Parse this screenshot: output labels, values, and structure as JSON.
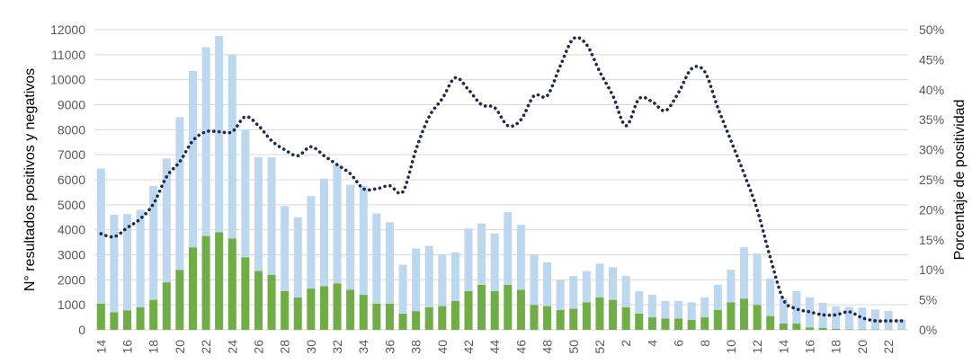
{
  "chart_data": {
    "type": "bar",
    "stacked": true,
    "x": [
      "14",
      "15",
      "16",
      "17",
      "18",
      "19",
      "20",
      "21",
      "22",
      "23",
      "24",
      "25",
      "26",
      "27",
      "28",
      "29",
      "30",
      "31",
      "32",
      "33",
      "34",
      "35",
      "36",
      "37",
      "38",
      "39",
      "40",
      "41",
      "42",
      "43",
      "44",
      "45",
      "46",
      "47",
      "48",
      "49",
      "50",
      "51",
      "52",
      "1",
      "2",
      "3",
      "4",
      "5",
      "6",
      "7",
      "8",
      "9",
      "10",
      "11",
      "12",
      "13",
      "14",
      "15",
      "16",
      "17",
      "18",
      "19",
      "20",
      "21",
      "22",
      "23"
    ],
    "x_tick_labels": [
      "14",
      "16",
      "18",
      "20",
      "22",
      "24",
      "26",
      "28",
      "30",
      "32",
      "34",
      "36",
      "38",
      "40",
      "42",
      "44",
      "46",
      "48",
      "50",
      "52",
      "2",
      "4",
      "6",
      "8",
      "10",
      "12",
      "14",
      "16",
      "18",
      "20",
      "22"
    ],
    "ylabel": "N° resultados positivos y negativos",
    "y2label": "Porcentaje de positividad",
    "ylim": [
      0,
      12000
    ],
    "y_ticks": [
      "0",
      "1000",
      "2000",
      "3000",
      "4000",
      "5000",
      "6000",
      "7000",
      "8000",
      "9000",
      "10000",
      "11000",
      "12000"
    ],
    "y2lim": [
      0,
      50
    ],
    "y2_ticks": [
      "0%",
      "5%",
      "10%",
      "15%",
      "20%",
      "25%",
      "30%",
      "35%",
      "40%",
      "45%",
      "50%"
    ],
    "grid": true,
    "series": [
      {
        "kind": "bar",
        "color": "#70ad47",
        "values": [
          1050,
          700,
          780,
          900,
          1200,
          1900,
          2400,
          3300,
          3750,
          3900,
          3650,
          2900,
          2350,
          2200,
          1550,
          1300,
          1650,
          1750,
          1850,
          1600,
          1400,
          1050,
          1050,
          650,
          750,
          900,
          950,
          1150,
          1550,
          1800,
          1550,
          1800,
          1600,
          1000,
          950,
          800,
          850,
          1100,
          1300,
          1200,
          900,
          650,
          500,
          450,
          450,
          400,
          500,
          800,
          1100,
          1250,
          1000,
          550,
          250,
          250,
          100,
          80,
          40,
          20,
          20,
          15,
          10,
          10
        ]
      },
      {
        "kind": "bar",
        "color": "#bdd7ee",
        "values": [
          5400,
          3900,
          3850,
          3900,
          4550,
          4950,
          6100,
          7050,
          7550,
          7850,
          7350,
          5100,
          4550,
          4700,
          3400,
          3200,
          3700,
          4300,
          4750,
          4200,
          4350,
          3600,
          3250,
          1950,
          2500,
          2450,
          2050,
          1950,
          2500,
          2400,
          2300,
          2900,
          2600,
          2000,
          1750,
          1200,
          1300,
          1250,
          1350,
          1300,
          1250,
          900,
          900,
          700,
          700,
          700,
          800,
          1000,
          1300,
          2050,
          2050,
          1500,
          1000,
          1300,
          1200,
          1000,
          900,
          900,
          870,
          800,
          750,
          400
        ]
      },
      {
        "kind": "bar",
        "color": "#d4c4e6",
        "values": [
          0,
          0,
          0,
          0,
          0,
          0,
          0,
          0,
          0,
          0,
          0,
          0,
          0,
          0,
          0,
          0,
          0,
          0,
          0,
          0,
          0,
          0,
          0,
          0,
          0,
          0,
          0,
          0,
          0,
          50,
          0,
          0,
          0,
          0,
          0,
          0,
          0,
          0,
          0,
          0,
          0,
          0,
          0,
          0,
          0,
          0,
          0,
          0,
          0,
          0,
          0,
          0,
          0,
          0,
          0,
          0,
          0,
          0,
          0,
          0,
          0,
          0
        ]
      },
      {
        "kind": "line",
        "axis": "right",
        "style": "dotted",
        "color": "#1f2a4d",
        "values": [
          16,
          15.5,
          17,
          18.5,
          21,
          25.5,
          28,
          31.5,
          33,
          33,
          33,
          35.5,
          34,
          31.5,
          30,
          29,
          30.5,
          29,
          27.5,
          26,
          23.5,
          23.5,
          24,
          23,
          30,
          35.5,
          38.5,
          42,
          40,
          37.5,
          37,
          34,
          35,
          39,
          39,
          44,
          48.5,
          47.5,
          43,
          39,
          34,
          38.5,
          38,
          36.5,
          39.5,
          43.5,
          43,
          37,
          31.5,
          26,
          20,
          12,
          5,
          3.5,
          3,
          2.5,
          2.5,
          3,
          2,
          1.5,
          1.5,
          1.5
        ]
      }
    ]
  }
}
